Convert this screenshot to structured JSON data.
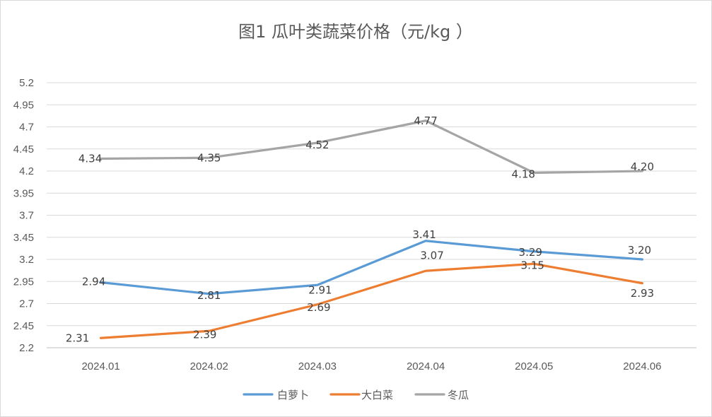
{
  "chart_data": {
    "type": "line",
    "title": "图1  瓜叶类蔬菜价格（元/kg ）",
    "categories": [
      "2024.01",
      "2024.02",
      "2024.03",
      "2024.04",
      "2024.05",
      "2024.06"
    ],
    "ylim": [
      2.2,
      5.2
    ],
    "yticks": [
      "2.2",
      "2.45",
      "2.7",
      "2.95",
      "3.2",
      "3.45",
      "3.7",
      "3.95",
      "4.2",
      "4.45",
      "4.7",
      "4.95",
      "5.2"
    ],
    "grid": true,
    "legend_position": "bottom",
    "series": [
      {
        "name": "白萝卜",
        "color": "#5b9bd5",
        "values": [
          2.94,
          2.81,
          2.91,
          3.41,
          3.29,
          3.2
        ],
        "labels": [
          "2.94",
          "2.81",
          "2.91",
          "3.41",
          "3.29",
          "3.20"
        ]
      },
      {
        "name": "大白菜",
        "color": "#ed7d31",
        "values": [
          2.31,
          2.39,
          2.69,
          3.07,
          3.15,
          2.93
        ],
        "labels": [
          "2.31",
          "2.39",
          "2.69",
          "3.07",
          "3.15",
          "2.93"
        ]
      },
      {
        "name": "冬瓜",
        "color": "#a5a5a5",
        "values": [
          4.34,
          4.35,
          4.52,
          4.77,
          4.18,
          4.2
        ],
        "labels": [
          "4.34",
          "4.35",
          "4.52",
          "4.77",
          "4.18",
          "4.20"
        ]
      }
    ]
  }
}
